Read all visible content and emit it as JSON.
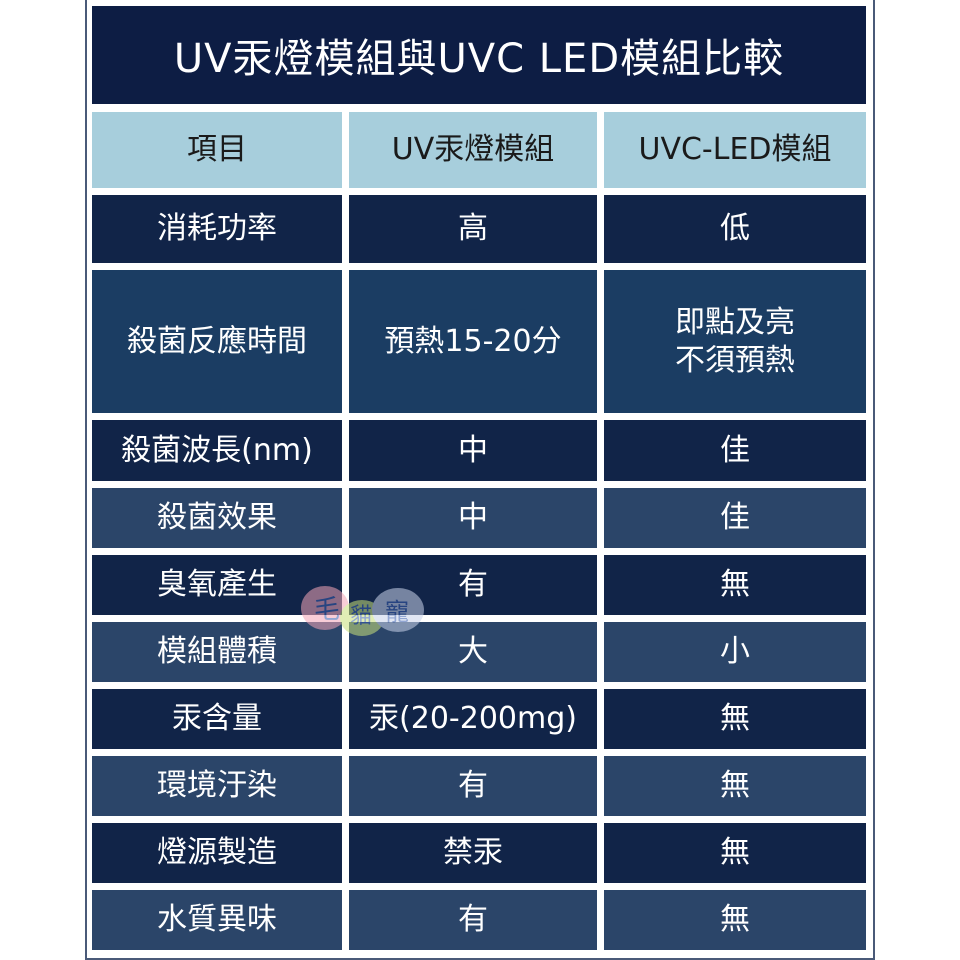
{
  "title": "UV汞燈模組與UVC  LED模組比較",
  "headers": [
    "項目",
    "UV汞燈模組",
    "UVC-LED模組"
  ],
  "rows": [
    {
      "item": "消耗功率",
      "uv": "高",
      "led": "低"
    },
    {
      "item": "殺菌反應時間",
      "uv": "預熱15-20分",
      "led": "即點及亮\n不須預熱"
    },
    {
      "item": "殺菌波長(nm)",
      "uv": "中",
      "led": "佳"
    },
    {
      "item": "殺菌效果",
      "uv": "中",
      "led": "佳"
    },
    {
      "item": "臭氧產生",
      "uv": "有",
      "led": "無"
    },
    {
      "item": "模組體積",
      "uv": "大",
      "led": "小"
    },
    {
      "item": "汞含量",
      "uv": "汞(20-200mg)",
      "led": "無"
    },
    {
      "item": "環境汙染",
      "uv": "有",
      "led": "無"
    },
    {
      "item": "燈源製造",
      "uv": "禁汞",
      "led": "無"
    },
    {
      "item": "水質異味",
      "uv": "有",
      "led": "無"
    }
  ],
  "watermark": "毛貓寵",
  "colors": {
    "title_bg": "#0d1d44",
    "header_bg": "#a7cedc",
    "row_dark": "#112448",
    "row_mid": "#1b3d63",
    "row_slate": "#2b4569"
  }
}
